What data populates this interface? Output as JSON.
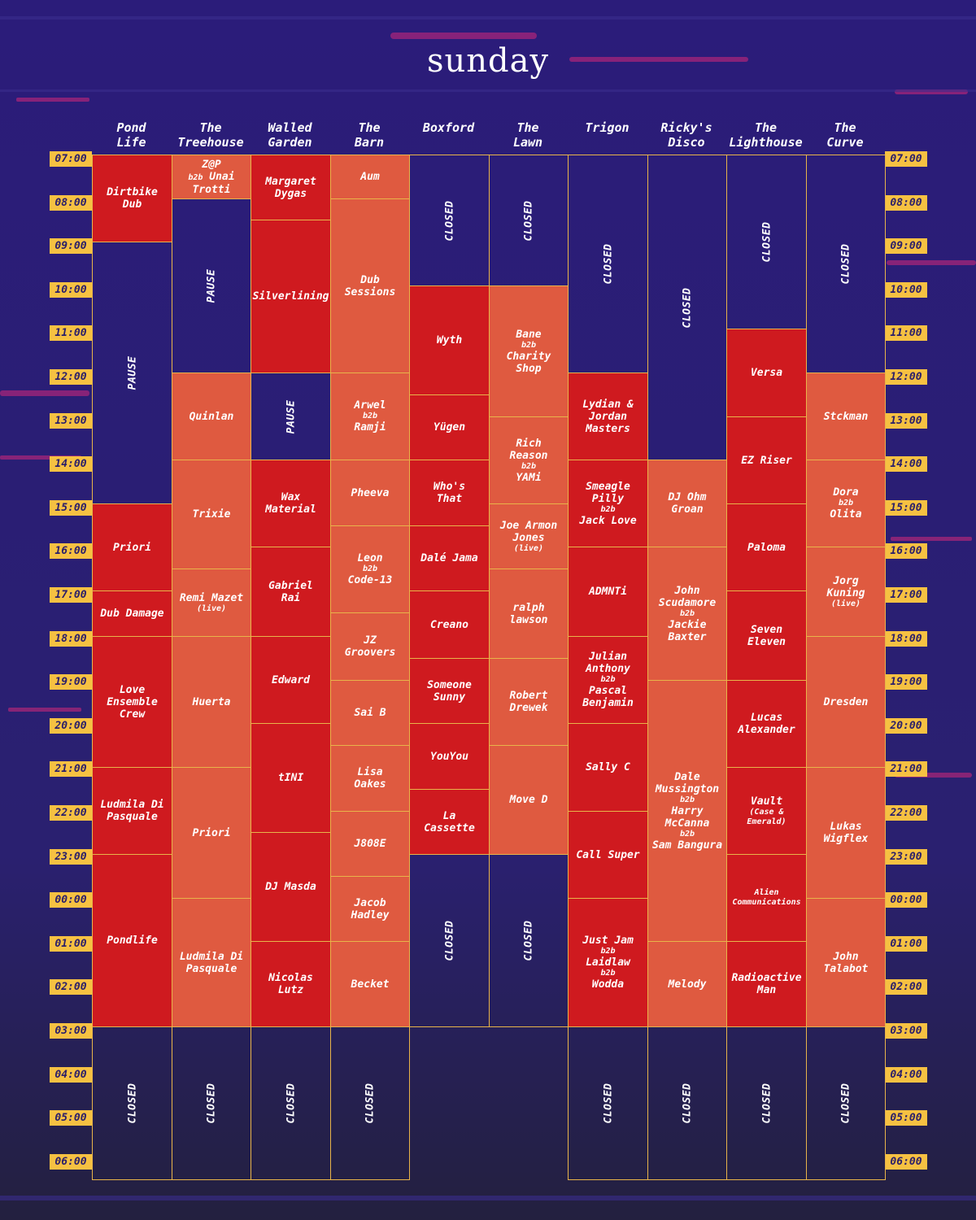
{
  "day": "sunday",
  "colors": {
    "dark": "#cf1a1f",
    "light": "#df5a40",
    "badge": "#f6c142",
    "line": "#e8b44a",
    "bg": "#2e1f78"
  },
  "times": [
    "07:00",
    "08:00",
    "09:00",
    "10:00",
    "11:00",
    "12:00",
    "13:00",
    "14:00",
    "15:00",
    "16:00",
    "17:00",
    "18:00",
    "19:00",
    "20:00",
    "21:00",
    "22:00",
    "23:00",
    "00:00",
    "01:00",
    "02:00",
    "03:00",
    "04:00",
    "05:00",
    "06:00"
  ],
  "venues": [
    {
      "name": [
        "Pond",
        "Life"
      ],
      "blocks": [
        {
          "s": 0,
          "e": 2,
          "t": "dark",
          "lines": [
            [
              "Dirtbike"
            ],
            [
              "Dub"
            ]
          ]
        },
        {
          "s": 2,
          "e": 8,
          "t": "closed",
          "rot": "PAUSE"
        },
        {
          "s": 8,
          "e": 10,
          "t": "dark",
          "lines": [
            [
              "Priori"
            ]
          ]
        },
        {
          "s": 10,
          "e": 11.05,
          "t": "dark",
          "lines": [
            [
              "Dub Damage"
            ]
          ]
        },
        {
          "s": 11.05,
          "e": 14.05,
          "t": "dark",
          "lines": [
            [
              "Love"
            ],
            [
              "Ensemble"
            ],
            [
              "Crew"
            ]
          ]
        },
        {
          "s": 14.05,
          "e": 16.05,
          "t": "dark",
          "lines": [
            [
              "Ludmila Di"
            ],
            [
              "Pasquale"
            ]
          ]
        },
        {
          "s": 16.05,
          "e": 20,
          "t": "dark",
          "lines": [
            [
              "Pondlife"
            ]
          ]
        },
        {
          "s": 20,
          "e": 23.5,
          "t": "closed",
          "rot": "CLOSED"
        }
      ]
    },
    {
      "name": [
        "The",
        "Treehouse"
      ],
      "blocks": [
        {
          "s": 0,
          "e": 1,
          "t": "light",
          "lines": [
            [
              "Z@P"
            ],
            [
              "b2b",
              "Unai"
            ],
            [
              "Trotti"
            ]
          ]
        },
        {
          "s": 1,
          "e": 5,
          "t": "closed",
          "rot": "PAUSE"
        },
        {
          "s": 5,
          "e": 7,
          "t": "light",
          "lines": [
            [
              "Quinlan"
            ]
          ]
        },
        {
          "s": 7,
          "e": 9.5,
          "t": "light",
          "lines": [
            [
              "Trixie"
            ]
          ]
        },
        {
          "s": 9.5,
          "e": 11.05,
          "t": "light",
          "lines": [
            [
              "Remi Mazet"
            ],
            [
              "(live)",
              "live"
            ]
          ]
        },
        {
          "s": 11.05,
          "e": 14.05,
          "t": "light",
          "lines": [
            [
              "Huerta"
            ]
          ]
        },
        {
          "s": 14.05,
          "e": 17.05,
          "t": "light",
          "lines": [
            [
              "Priori"
            ]
          ]
        },
        {
          "s": 17.05,
          "e": 20,
          "t": "light",
          "lines": [
            [
              "Ludmila Di"
            ],
            [
              "Pasquale"
            ]
          ]
        },
        {
          "s": 20,
          "e": 23.5,
          "t": "closed",
          "rot": "CLOSED"
        }
      ]
    },
    {
      "name": [
        "Walled",
        "Garden"
      ],
      "blocks": [
        {
          "s": 0,
          "e": 1.5,
          "t": "dark",
          "lines": [
            [
              "Margaret"
            ],
            [
              "Dygas"
            ]
          ]
        },
        {
          "s": 1.5,
          "e": 5,
          "t": "dark",
          "lines": [
            [
              "Silverlining"
            ]
          ]
        },
        {
          "s": 5,
          "e": 7,
          "t": "closed",
          "rot": "PAUSE"
        },
        {
          "s": 7,
          "e": 9,
          "t": "dark",
          "lines": [
            [
              "Wax"
            ],
            [
              "Material"
            ]
          ]
        },
        {
          "s": 9,
          "e": 11.05,
          "t": "dark",
          "lines": [
            [
              "Gabriel"
            ],
            [
              "Rai"
            ]
          ]
        },
        {
          "s": 11.05,
          "e": 13.05,
          "t": "dark",
          "lines": [
            [
              "Edward"
            ]
          ]
        },
        {
          "s": 13.05,
          "e": 15.55,
          "t": "dark",
          "lines": [
            [
              "tINI"
            ]
          ]
        },
        {
          "s": 15.55,
          "e": 18.05,
          "t": "dark",
          "lines": [
            [
              "DJ Masda"
            ]
          ]
        },
        {
          "s": 18.05,
          "e": 20,
          "t": "dark",
          "lines": [
            [
              "Nicolas"
            ],
            [
              "Lutz"
            ]
          ]
        },
        {
          "s": 20,
          "e": 23.5,
          "t": "closed",
          "rot": "CLOSED"
        }
      ]
    },
    {
      "name": [
        "The",
        "Barn"
      ],
      "blocks": [
        {
          "s": 0,
          "e": 1,
          "t": "light",
          "lines": [
            [
              "Aum"
            ]
          ]
        },
        {
          "s": 1,
          "e": 5,
          "t": "light",
          "lines": [
            [
              "Dub"
            ],
            [
              "Sessions"
            ]
          ]
        },
        {
          "s": 5,
          "e": 7,
          "t": "light",
          "lines": [
            [
              "Arwel"
            ],
            [
              "b2b",
              "b2b"
            ],
            [
              "Ramji"
            ]
          ]
        },
        {
          "s": 7,
          "e": 8.5,
          "t": "light",
          "lines": [
            [
              "Pheeva"
            ]
          ]
        },
        {
          "s": 8.5,
          "e": 10.5,
          "t": "light",
          "lines": [
            [
              "Leon"
            ],
            [
              "b2b",
              "b2b"
            ],
            [
              "Code-13"
            ]
          ]
        },
        {
          "s": 10.5,
          "e": 12.05,
          "t": "light",
          "lines": [
            [
              "JZ"
            ],
            [
              "Groovers"
            ]
          ]
        },
        {
          "s": 12.05,
          "e": 13.55,
          "t": "light",
          "lines": [
            [
              "Sai B"
            ]
          ]
        },
        {
          "s": 13.55,
          "e": 15.05,
          "t": "light",
          "lines": [
            [
              "Lisa"
            ],
            [
              "Oakes"
            ]
          ]
        },
        {
          "s": 15.05,
          "e": 16.55,
          "t": "light",
          "lines": [
            [
              "J808E"
            ]
          ]
        },
        {
          "s": 16.55,
          "e": 18.05,
          "t": "light",
          "lines": [
            [
              "Jacob"
            ],
            [
              "Hadley"
            ]
          ]
        },
        {
          "s": 18.05,
          "e": 20,
          "t": "light",
          "lines": [
            [
              "Becket"
            ]
          ]
        },
        {
          "s": 20,
          "e": 23.5,
          "t": "closed",
          "rot": "CLOSED"
        }
      ]
    },
    {
      "name": [
        "Boxford"
      ],
      "blocks": [
        {
          "s": 0,
          "e": 3,
          "t": "closed",
          "rot": "CLOSED"
        },
        {
          "s": 3,
          "e": 5.5,
          "t": "dark",
          "lines": [
            [
              "Wyth"
            ]
          ]
        },
        {
          "s": 5.5,
          "e": 7,
          "t": "dark",
          "lines": [
            [
              "Yügen"
            ]
          ]
        },
        {
          "s": 7,
          "e": 8.5,
          "t": "dark",
          "lines": [
            [
              "Who's"
            ],
            [
              "That"
            ]
          ]
        },
        {
          "s": 8.5,
          "e": 10,
          "t": "dark",
          "lines": [
            [
              "Dalé Jama"
            ]
          ]
        },
        {
          "s": 10,
          "e": 11.55,
          "t": "dark",
          "lines": [
            [
              "Creano"
            ]
          ]
        },
        {
          "s": 11.55,
          "e": 13.05,
          "t": "dark",
          "lines": [
            [
              "Someone"
            ],
            [
              "Sunny"
            ]
          ]
        },
        {
          "s": 13.05,
          "e": 14.55,
          "t": "dark",
          "lines": [
            [
              "YouYou"
            ]
          ]
        },
        {
          "s": 14.55,
          "e": 16.05,
          "t": "dark",
          "lines": [
            [
              "La"
            ],
            [
              "Cassette"
            ]
          ]
        },
        {
          "s": 16.05,
          "e": 20,
          "t": "closed",
          "rot": "CLOSED"
        }
      ]
    },
    {
      "name": [
        "The",
        "Lawn"
      ],
      "blocks": [
        {
          "s": 0,
          "e": 3,
          "t": "closed",
          "rot": "CLOSED"
        },
        {
          "s": 3,
          "e": 6,
          "t": "light",
          "lines": [
            [
              "Bane"
            ],
            [
              "b2b",
              "b2b"
            ],
            [
              "Charity"
            ],
            [
              "Shop"
            ]
          ]
        },
        {
          "s": 6,
          "e": 8,
          "t": "light",
          "lines": [
            [
              "Rich"
            ],
            [
              "Reason"
            ],
            [
              "b2b",
              "b2b"
            ],
            [
              "YAMi"
            ]
          ]
        },
        {
          "s": 8,
          "e": 9.5,
          "t": "light",
          "lines": [
            [
              "Joe Armon"
            ],
            [
              "Jones"
            ],
            [
              "(live)",
              "live"
            ]
          ]
        },
        {
          "s": 9.5,
          "e": 11.55,
          "t": "light",
          "lines": [
            [
              "ralph"
            ],
            [
              "lawson"
            ]
          ]
        },
        {
          "s": 11.55,
          "e": 13.55,
          "t": "light",
          "lines": [
            [
              "Robert"
            ],
            [
              "Drewek"
            ]
          ]
        },
        {
          "s": 13.55,
          "e": 16.05,
          "t": "light",
          "lines": [
            [
              "Move D"
            ]
          ]
        },
        {
          "s": 16.05,
          "e": 20,
          "t": "closed",
          "rot": "CLOSED"
        }
      ]
    },
    {
      "name": [
        "Trigon"
      ],
      "blocks": [
        {
          "s": 0,
          "e": 5,
          "t": "closed",
          "rot": "CLOSED"
        },
        {
          "s": 5,
          "e": 7,
          "t": "dark",
          "lines": [
            [
              "Lydian &"
            ],
            [
              "Jordan"
            ],
            [
              "Masters"
            ]
          ]
        },
        {
          "s": 7,
          "e": 9,
          "t": "dark",
          "lines": [
            [
              "Smeagle"
            ],
            [
              "Pilly"
            ],
            [
              "b2b",
              "b2b"
            ],
            [
              "Jack Love"
            ]
          ]
        },
        {
          "s": 9,
          "e": 11.05,
          "t": "dark",
          "lines": [
            [
              "ADMNTi"
            ]
          ]
        },
        {
          "s": 11.05,
          "e": 13.05,
          "t": "dark",
          "lines": [
            [
              "Julian"
            ],
            [
              "Anthony"
            ],
            [
              "b2b",
              "b2b"
            ],
            [
              "Pascal"
            ],
            [
              "Benjamin"
            ]
          ]
        },
        {
          "s": 13.05,
          "e": 15.05,
          "t": "dark",
          "lines": [
            [
              "Sally C"
            ]
          ]
        },
        {
          "s": 15.05,
          "e": 17.05,
          "t": "dark",
          "lines": [
            [
              "Call Super"
            ]
          ]
        },
        {
          "s": 17.05,
          "e": 20,
          "t": "dark",
          "lines": [
            [
              "Just Jam"
            ],
            [
              "b2b",
              "b2b"
            ],
            [
              "Laidlaw"
            ],
            [
              "b2b",
              "b2b"
            ],
            [
              "Wodda"
            ]
          ]
        },
        {
          "s": 20,
          "e": 23.5,
          "t": "closed",
          "rot": "CLOSED"
        }
      ]
    },
    {
      "name": [
        "Ricky's",
        "Disco"
      ],
      "blocks": [
        {
          "s": 0,
          "e": 7,
          "t": "closed",
          "rot": "CLOSED"
        },
        {
          "s": 7,
          "e": 9,
          "t": "light",
          "lines": [
            [
              "DJ Ohm"
            ],
            [
              "Groan"
            ]
          ]
        },
        {
          "s": 9,
          "e": 12.05,
          "t": "light",
          "lines": [
            [
              "John"
            ],
            [
              "Scudamore"
            ],
            [
              "b2b",
              "b2b"
            ],
            [
              "Jackie"
            ],
            [
              "Baxter"
            ]
          ]
        },
        {
          "s": 12.05,
          "e": 18.05,
          "t": "light",
          "lines": [
            [
              "Dale"
            ],
            [
              "Mussington"
            ],
            [
              "b2b",
              "b2b"
            ],
            [
              "Harry"
            ],
            [
              "McCanna"
            ],
            [
              "b2b",
              "b2b"
            ],
            [
              "Sam Bangura"
            ]
          ]
        },
        {
          "s": 18.05,
          "e": 20,
          "t": "light",
          "lines": [
            [
              "Melody"
            ]
          ]
        },
        {
          "s": 20,
          "e": 23.5,
          "t": "closed",
          "rot": "CLOSED"
        }
      ]
    },
    {
      "name": [
        "The",
        "Lighthouse"
      ],
      "blocks": [
        {
          "s": 0,
          "e": 4,
          "t": "closed",
          "rot": "CLOSED"
        },
        {
          "s": 4,
          "e": 6,
          "t": "dark",
          "lines": [
            [
              "Versa"
            ]
          ]
        },
        {
          "s": 6,
          "e": 8,
          "t": "dark",
          "lines": [
            [
              "EZ Riser"
            ]
          ]
        },
        {
          "s": 8,
          "e": 10,
          "t": "dark",
          "lines": [
            [
              "Paloma"
            ]
          ]
        },
        {
          "s": 10,
          "e": 12.05,
          "t": "dark",
          "lines": [
            [
              "Seven"
            ],
            [
              "Eleven"
            ]
          ]
        },
        {
          "s": 12.05,
          "e": 14.05,
          "t": "dark",
          "lines": [
            [
              "Lucas"
            ],
            [
              "Alexander"
            ]
          ]
        },
        {
          "s": 14.05,
          "e": 16.05,
          "t": "dark",
          "lines": [
            [
              "Vault"
            ],
            [
              "(Case &",
              "live"
            ],
            [
              "Emerald)",
              "live"
            ]
          ]
        },
        {
          "s": 16.05,
          "e": 18.05,
          "t": "dark",
          "lines": [
            [
              "Alien",
              "small"
            ],
            [
              "Communications",
              "small"
            ]
          ]
        },
        {
          "s": 18.05,
          "e": 20,
          "t": "dark",
          "lines": [
            [
              "Radioactive"
            ],
            [
              "Man"
            ]
          ]
        },
        {
          "s": 20,
          "e": 23.5,
          "t": "closed",
          "rot": "CLOSED"
        }
      ]
    },
    {
      "name": [
        "The",
        "Curve"
      ],
      "blocks": [
        {
          "s": 0,
          "e": 5,
          "t": "closed",
          "rot": "CLOSED"
        },
        {
          "s": 5,
          "e": 7,
          "t": "light",
          "lines": [
            [
              "Stckman"
            ]
          ]
        },
        {
          "s": 7,
          "e": 9,
          "t": "light",
          "lines": [
            [
              "Dora"
            ],
            [
              "b2b",
              "b2b"
            ],
            [
              "Olita"
            ]
          ]
        },
        {
          "s": 9,
          "e": 11.05,
          "t": "light",
          "lines": [
            [
              "Jorg"
            ],
            [
              "Kuning"
            ],
            [
              "(live)",
              "live"
            ]
          ]
        },
        {
          "s": 11.05,
          "e": 14.05,
          "t": "light",
          "lines": [
            [
              "Dresden"
            ]
          ]
        },
        {
          "s": 14.05,
          "e": 17.05,
          "t": "light",
          "lines": [
            [
              "Lukas"
            ],
            [
              "Wigflex"
            ]
          ]
        },
        {
          "s": 17.05,
          "e": 20,
          "t": "light",
          "lines": [
            [
              "John"
            ],
            [
              "Talabot"
            ]
          ]
        },
        {
          "s": 20,
          "e": 23.5,
          "t": "closed",
          "rot": "CLOSED"
        }
      ]
    }
  ]
}
